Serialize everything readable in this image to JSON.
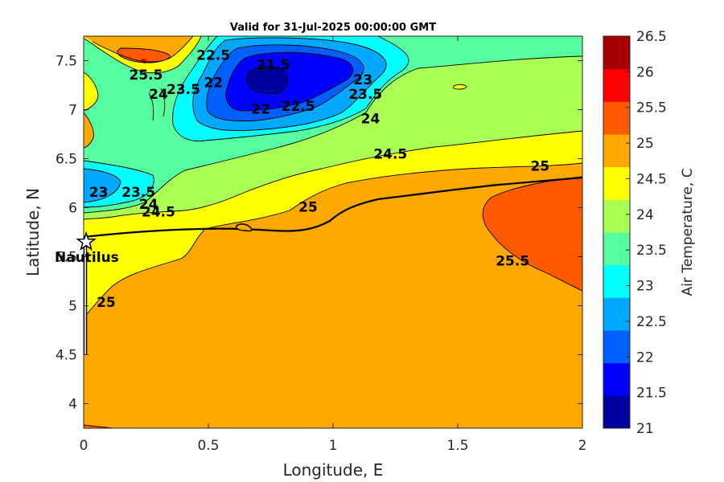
{
  "chart_data": {
    "type": "contour",
    "title": "Valid for 31-Jul-2025 00:00:00 GMT",
    "xlabel": "Longitude, E",
    "ylabel": "Latitude, N",
    "xlim": [
      0,
      2
    ],
    "ylim": [
      3.75,
      7.75
    ],
    "xticks": [
      "0",
      "0.5",
      "1",
      "1.5",
      "2"
    ],
    "yticks": [
      "4",
      "4.5",
      "5",
      "5.5",
      "6",
      "6.5",
      "7",
      "7.5"
    ],
    "colorbar": {
      "label": "Air Temperature, C",
      "ticks": [
        "21",
        "21.5",
        "22",
        "22.5",
        "23",
        "23.5",
        "24",
        "24.5",
        "25",
        "25.5",
        "26",
        "26.5"
      ],
      "levels": [
        21,
        21.5,
        22,
        22.5,
        23,
        23.5,
        24,
        24.5,
        25,
        25.5,
        26,
        26.5
      ],
      "colors": [
        "#00009f",
        "#0000ff",
        "#0060ff",
        "#00a8ff",
        "#00ffff",
        "#55ff9f",
        "#aaff55",
        "#ffff00",
        "#ffa800",
        "#ff5a00",
        "#ff0000",
        "#a80000"
      ]
    },
    "contour_labels": [
      {
        "text": "21.5",
        "lon": 0.76,
        "lat": 7.45
      },
      {
        "text": "22",
        "lon": 0.71,
        "lat": 7.0
      },
      {
        "text": "22.5",
        "lon": 0.86,
        "lat": 7.03
      },
      {
        "text": "22.5",
        "lon": 0.52,
        "lat": 7.55
      },
      {
        "text": "22",
        "lon": 0.52,
        "lat": 7.27
      },
      {
        "text": "23",
        "lon": 1.12,
        "lat": 7.3
      },
      {
        "text": "23.5",
        "lon": 1.13,
        "lat": 7.15
      },
      {
        "text": "24",
        "lon": 1.15,
        "lat": 6.9
      },
      {
        "text": "24.5",
        "lon": 1.23,
        "lat": 6.54
      },
      {
        "text": "25",
        "lon": 1.83,
        "lat": 6.42
      },
      {
        "text": "25",
        "lon": 0.9,
        "lat": 6.0
      },
      {
        "text": "25.5",
        "lon": 0.25,
        "lat": 7.35
      },
      {
        "text": "24",
        "lon": 0.3,
        "lat": 7.15
      },
      {
        "text": "23.5",
        "lon": 0.4,
        "lat": 7.2
      },
      {
        "text": "23",
        "lon": 0.06,
        "lat": 6.15
      },
      {
        "text": "23.5",
        "lon": 0.22,
        "lat": 6.15
      },
      {
        "text": "24",
        "lon": 0.26,
        "lat": 6.03
      },
      {
        "text": "24.5",
        "lon": 0.3,
        "lat": 5.95
      },
      {
        "text": "25.5",
        "lon": 1.72,
        "lat": 5.45
      },
      {
        "text": "25",
        "lon": 0.09,
        "lat": 5.03
      }
    ],
    "station": {
      "name": "Nautilus",
      "lon": 0.01,
      "lat": 5.65
    }
  }
}
